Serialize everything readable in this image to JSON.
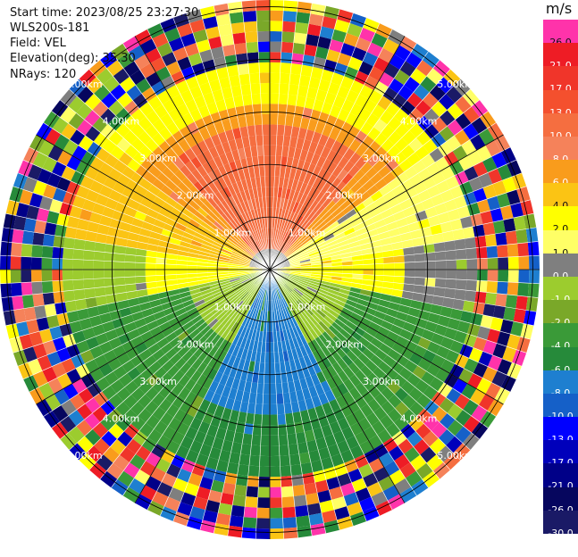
{
  "info": {
    "start_time": "Start time: 2023/08/25 23:27:30",
    "station": "WLS200s-181",
    "field": "Field: VEL",
    "elevation": "Elevation(deg): 35.30",
    "nrays": "NRays: 120"
  },
  "colorbar": {
    "unit": "m/s",
    "levels": [
      {
        "label": "26.0",
        "color": "#ff33aa"
      },
      {
        "label": "21.0",
        "color": "#ee1c25"
      },
      {
        "label": "17.0",
        "color": "#f0352a"
      },
      {
        "label": "13.0",
        "color": "#f4502e"
      },
      {
        "label": "10.0",
        "color": "#f56e40"
      },
      {
        "label": "8.0",
        "color": "#f5825a"
      },
      {
        "label": "6.0",
        "color": "#f99c1c"
      },
      {
        "label": "4.0",
        "color": "#fbc414"
      },
      {
        "label": "2.0",
        "color": "#ffff00"
      },
      {
        "label": "1.0",
        "color": "#ffff66"
      },
      {
        "label": "0.0",
        "color": "#7f7f7f"
      },
      {
        "label": "-1.0",
        "color": "#9ccc2e"
      },
      {
        "label": "-2.0",
        "color": "#7aa829"
      },
      {
        "label": "-4.0",
        "color": "#3a9a38"
      },
      {
        "label": "-6.0",
        "color": "#268a3a"
      },
      {
        "label": "-8.0",
        "color": "#1e7fd0"
      },
      {
        "label": "-10.0",
        "color": "#1560c8"
      },
      {
        "label": "-13.0",
        "color": "#0000ff"
      },
      {
        "label": "-17.0",
        "color": "#0000bb"
      },
      {
        "label": "-21.0",
        "color": "#000088"
      },
      {
        "label": "-26.0",
        "color": "#06065e"
      },
      {
        "label": "-30.0",
        "color": "#1a1a66"
      }
    ]
  },
  "rings": [
    "1.00km",
    "2.00km",
    "3.00km",
    "4.00km",
    "5.00km"
  ],
  "nrays": 120
}
